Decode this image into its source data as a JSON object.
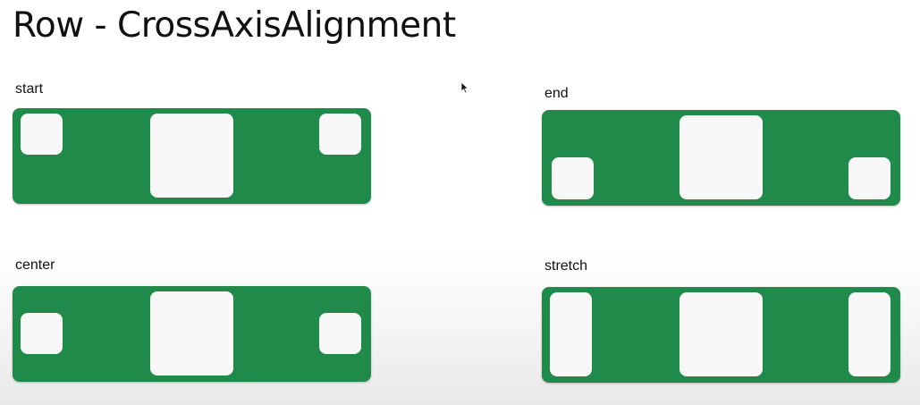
{
  "title": "Row - CrossAxisAlignment",
  "examples": [
    {
      "label": "start"
    },
    {
      "label": "end"
    },
    {
      "label": "center"
    },
    {
      "label": "stretch"
    }
  ],
  "colors": {
    "panel": "#1f8a4a",
    "box": "#f7f7f7"
  },
  "icons": {
    "cursor": "mouse-pointer-icon"
  }
}
